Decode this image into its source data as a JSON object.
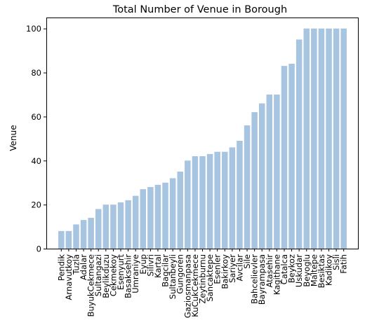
{
  "chart_data": {
    "type": "bar",
    "title": "Total Number of Venue in Borough",
    "xlabel": "",
    "ylabel": "Venue",
    "ylim": [
      0,
      105
    ],
    "yticks": [
      0,
      20,
      40,
      60,
      80,
      100
    ],
    "grid": false,
    "bar_color": "#a7c4e0",
    "categories": [
      "Pendik",
      "Arnavutkoy",
      "Tuzla",
      "Adalar",
      "BuyukCekmece",
      "Sultangazi",
      "Beylikduzu",
      "Cekmekoy",
      "Esenyurt",
      "Basaksehir",
      "Umraniye",
      "Eyup",
      "Silivri",
      "Kartal",
      "Bagcilar",
      "Sultanbeyli",
      "Gungoren",
      "Gaziosmanpasa",
      "KuCukCekmece",
      "Zeytinburnu",
      "Sancaktepe",
      "Esenler",
      "Bakirkoy",
      "Sariyer",
      "Avcilar",
      "Sile",
      "Bahcelievler",
      "Bayrampasa",
      "Atasehir",
      "Kagithane",
      "Catalca",
      "Beykoz",
      "Uskudar",
      "Beyoglu",
      "Maltepe",
      "Besiktas",
      "Kadikoy",
      "Sisli",
      "Fatih"
    ],
    "values": [
      8,
      8,
      11,
      13,
      14,
      18,
      20,
      20,
      21,
      22,
      24,
      27,
      28,
      29,
      30,
      32,
      35,
      40,
      42,
      42,
      43,
      44,
      44,
      46,
      49,
      56,
      62,
      66,
      70,
      70,
      83,
      84,
      95,
      100,
      100,
      100,
      100,
      100,
      100
    ]
  }
}
